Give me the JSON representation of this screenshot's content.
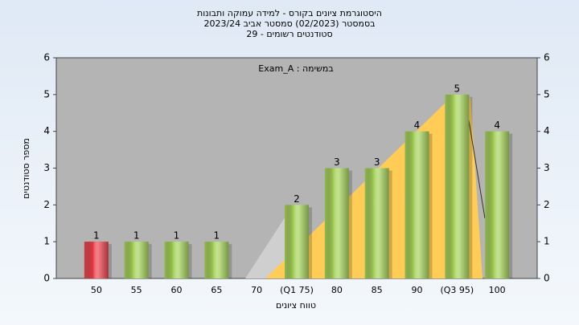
{
  "chart_data": {
    "type": "bar",
    "title": [
      "היסטוגרמת ציונים בקורס - למידה עמוקה ותבונות",
      "בסמסטר (02/2023) סמסטר אביב 2023/24",
      "סטודנטים רשומים - 29"
    ],
    "annotation": "במשימה : Exam_A",
    "xlabel": "טווח ציונים",
    "ylabel": "מספר סטודנטים",
    "categories": [
      "50",
      "55",
      "60",
      "65",
      "70",
      "(Q1 75)",
      "80",
      "85",
      "90",
      "(Q3 95)",
      "100"
    ],
    "values": [
      1,
      1,
      1,
      1,
      0,
      2,
      3,
      3,
      4,
      5,
      4
    ],
    "colors": [
      "#e8303a",
      "#9ccc4a",
      "#9ccc4a",
      "#9ccc4a",
      "#9ccc4a",
      "#9ccc4a",
      "#9ccc4a",
      "#9ccc4a",
      "#9ccc4a",
      "#9ccc4a",
      "#9ccc4a"
    ],
    "ylim": [
      0,
      6
    ],
    "yticks": [
      0,
      1,
      2,
      3,
      4,
      5,
      6
    ],
    "y2lim": [
      0,
      6
    ],
    "y2ticks": [
      0,
      1,
      2,
      3,
      4,
      5,
      6
    ]
  }
}
